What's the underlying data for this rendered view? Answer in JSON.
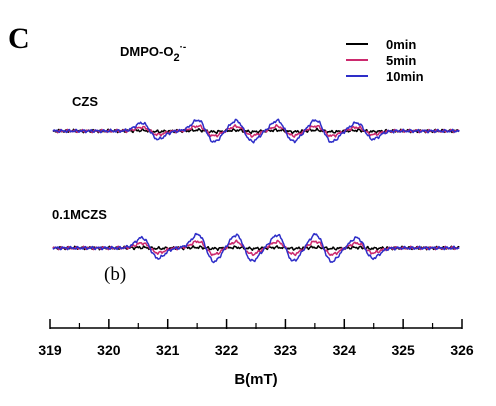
{
  "chart_data": {
    "type": "line",
    "panel_letter": "C",
    "title_main": "DMPO-O",
    "title_sub": "2",
    "title_sup": "·-",
    "xlabel": "B(mT)",
    "ylabel": "",
    "xlim": [
      319,
      326
    ],
    "xticks": [
      "319",
      "320",
      "321",
      "322",
      "323",
      "324",
      "325",
      "326"
    ],
    "grid": false,
    "legend_position": "top-right",
    "legend": [
      {
        "label": "0min",
        "color": "#000000"
      },
      {
        "label": "5min",
        "color": "#cc2a6e"
      },
      {
        "label": "10min",
        "color": "#2e2ec8"
      }
    ],
    "annotation": "(b)",
    "peak_positions": [
      320.7,
      321.65,
      322.3,
      323.0,
      323.65,
      324.35
    ],
    "groups": [
      {
        "label": "CZS",
        "series": [
          {
            "name": "0min",
            "color": "#000000",
            "amplitude": 0.08
          },
          {
            "name": "5min",
            "color": "#cc2a6e",
            "amplitude": 0.45
          },
          {
            "name": "10min",
            "color": "#2e2ec8",
            "amplitude": 1.0
          }
        ]
      },
      {
        "label": "0.1MCZS",
        "series": [
          {
            "name": "0min",
            "color": "#000000",
            "amplitude": 0.06
          },
          {
            "name": "5min",
            "color": "#cc2a6e",
            "amplitude": 0.6
          },
          {
            "name": "10min",
            "color": "#2e2ec8",
            "amplitude": 1.25
          }
        ]
      }
    ]
  }
}
